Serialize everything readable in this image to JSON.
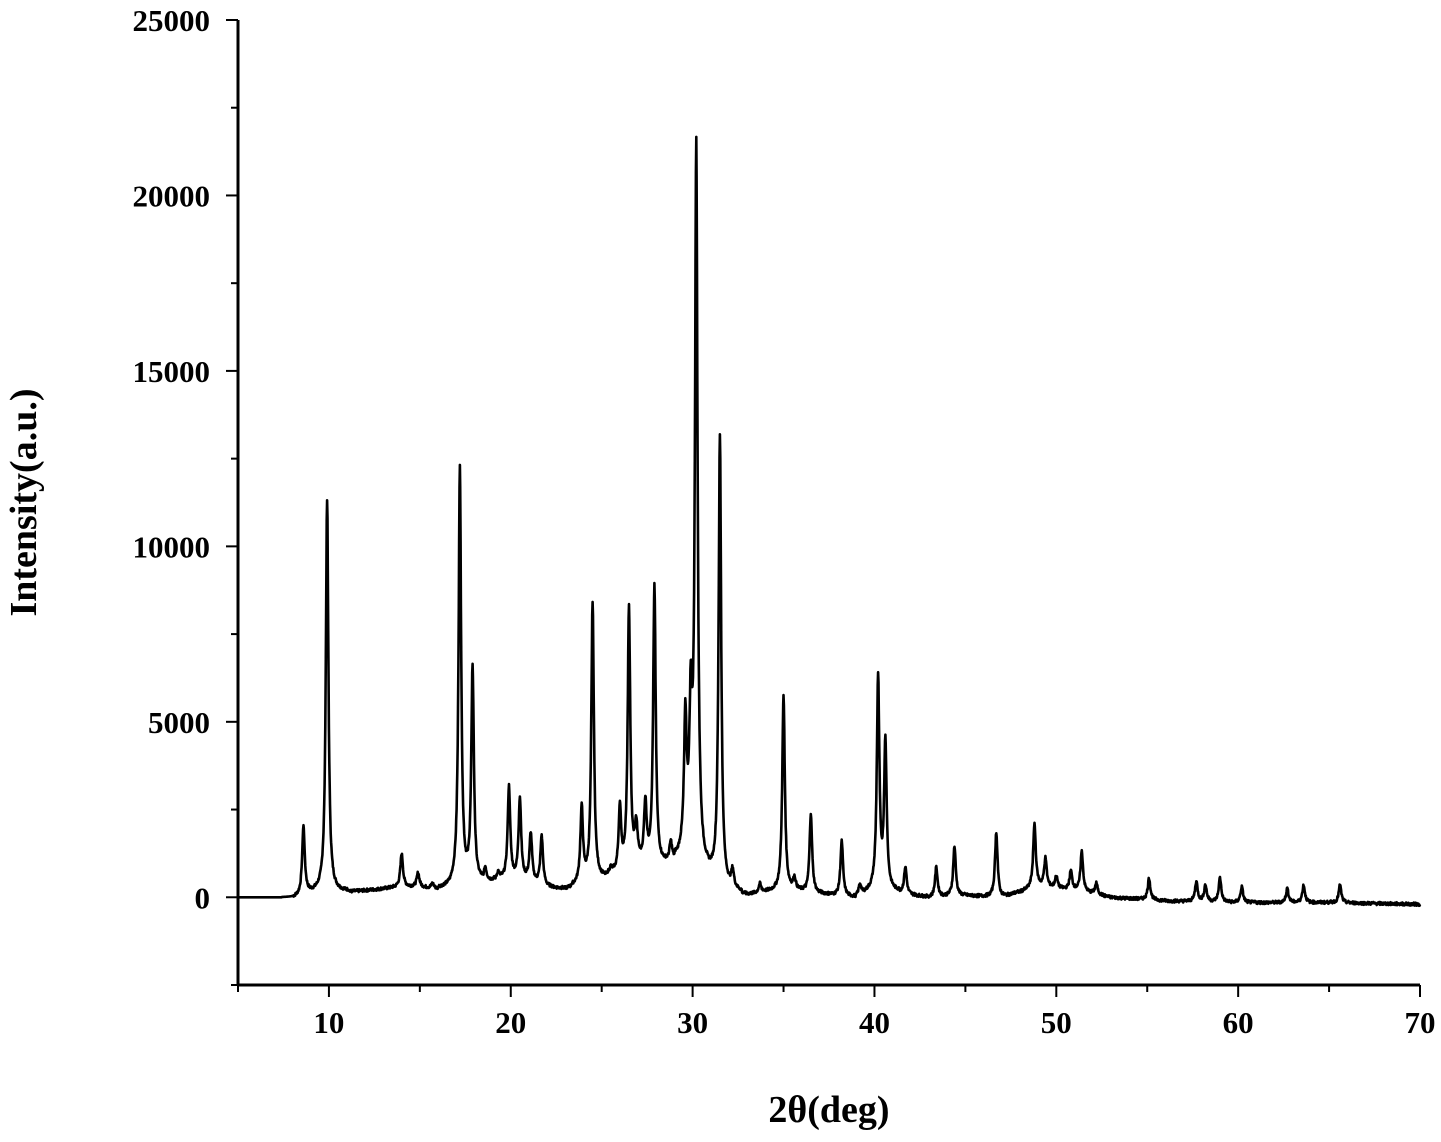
{
  "chart_data": {
    "type": "line",
    "title": "",
    "xlabel": "2θ(deg)",
    "ylabel": "Intensity(a.u.)",
    "xlim": [
      5,
      70
    ],
    "ylim": [
      -2500,
      25000
    ],
    "x_ticks": [
      10,
      20,
      30,
      40,
      50,
      60,
      70
    ],
    "x_tick_labels": [
      "10",
      "20",
      "30",
      "40",
      "50",
      "60",
      "70"
    ],
    "y_ticks": [
      0,
      5000,
      10000,
      15000,
      20000,
      25000
    ],
    "y_tick_labels": [
      "0",
      "5000",
      "10000",
      "15000",
      "20000",
      "25000"
    ],
    "grid": false,
    "legend": "none",
    "line_color": "#000000",
    "baseline": [
      [
        5,
        0
      ],
      [
        8,
        0
      ],
      [
        9.5,
        150
      ],
      [
        10.5,
        150
      ],
      [
        12,
        200
      ],
      [
        14,
        300
      ],
      [
        15,
        300
      ],
      [
        16,
        250
      ],
      [
        17,
        300
      ],
      [
        18.5,
        400
      ],
      [
        19.5,
        500
      ],
      [
        20.5,
        500
      ],
      [
        22,
        300
      ],
      [
        23,
        250
      ],
      [
        24,
        400
      ],
      [
        25,
        500
      ],
      [
        26,
        700
      ],
      [
        27,
        900
      ],
      [
        28,
        900
      ],
      [
        29,
        1000
      ],
      [
        29.8,
        1400
      ],
      [
        30.6,
        700
      ],
      [
        31.6,
        300
      ],
      [
        33,
        100
      ],
      [
        35,
        200
      ],
      [
        37,
        100
      ],
      [
        39,
        0
      ],
      [
        40,
        200
      ],
      [
        41,
        150
      ],
      [
        43,
        0
      ],
      [
        45,
        50
      ],
      [
        47,
        0
      ],
      [
        49,
        300
      ],
      [
        51,
        200
      ],
      [
        53,
        0
      ],
      [
        56,
        -100
      ],
      [
        60,
        -150
      ],
      [
        65,
        -150
      ],
      [
        70,
        -200
      ]
    ],
    "peaks": [
      {
        "x": 8.6,
        "y": 2050
      },
      {
        "x": 9.9,
        "y": 11350
      },
      {
        "x": 14.0,
        "y": 1250
      },
      {
        "x": 14.9,
        "y": 700
      },
      {
        "x": 15.7,
        "y": 400
      },
      {
        "x": 17.2,
        "y": 12200
      },
      {
        "x": 17.9,
        "y": 6500
      },
      {
        "x": 18.6,
        "y": 800
      },
      {
        "x": 19.3,
        "y": 700
      },
      {
        "x": 19.9,
        "y": 3150
      },
      {
        "x": 20.5,
        "y": 2800
      },
      {
        "x": 21.1,
        "y": 1800
      },
      {
        "x": 21.7,
        "y": 1750
      },
      {
        "x": 23.9,
        "y": 2500
      },
      {
        "x": 24.5,
        "y": 8400
      },
      {
        "x": 25.5,
        "y": 750
      },
      {
        "x": 26.0,
        "y": 2500
      },
      {
        "x": 26.5,
        "y": 8200
      },
      {
        "x": 26.9,
        "y": 1900
      },
      {
        "x": 27.4,
        "y": 2600
      },
      {
        "x": 27.9,
        "y": 8850
      },
      {
        "x": 28.8,
        "y": 1500
      },
      {
        "x": 29.6,
        "y": 4950
      },
      {
        "x": 29.9,
        "y": 5000
      },
      {
        "x": 30.2,
        "y": 21350
      },
      {
        "x": 31.5,
        "y": 13200
      },
      {
        "x": 32.2,
        "y": 700
      },
      {
        "x": 33.7,
        "y": 400
      },
      {
        "x": 35.0,
        "y": 5750
      },
      {
        "x": 35.6,
        "y": 500
      },
      {
        "x": 36.5,
        "y": 2400
      },
      {
        "x": 38.2,
        "y": 1600
      },
      {
        "x": 39.2,
        "y": 350
      },
      {
        "x": 40.2,
        "y": 6200
      },
      {
        "x": 40.6,
        "y": 4350
      },
      {
        "x": 41.7,
        "y": 850
      },
      {
        "x": 43.4,
        "y": 850
      },
      {
        "x": 44.4,
        "y": 1450
      },
      {
        "x": 46.7,
        "y": 1850
      },
      {
        "x": 48.8,
        "y": 2100
      },
      {
        "x": 49.4,
        "y": 1100
      },
      {
        "x": 50.0,
        "y": 600
      },
      {
        "x": 50.8,
        "y": 750
      },
      {
        "x": 51.4,
        "y": 1300
      },
      {
        "x": 52.2,
        "y": 400
      },
      {
        "x": 55.1,
        "y": 550
      },
      {
        "x": 57.7,
        "y": 450
      },
      {
        "x": 58.2,
        "y": 350
      },
      {
        "x": 59.0,
        "y": 550
      },
      {
        "x": 60.2,
        "y": 300
      },
      {
        "x": 62.7,
        "y": 250
      },
      {
        "x": 63.6,
        "y": 350
      },
      {
        "x": 65.6,
        "y": 350
      }
    ]
  }
}
